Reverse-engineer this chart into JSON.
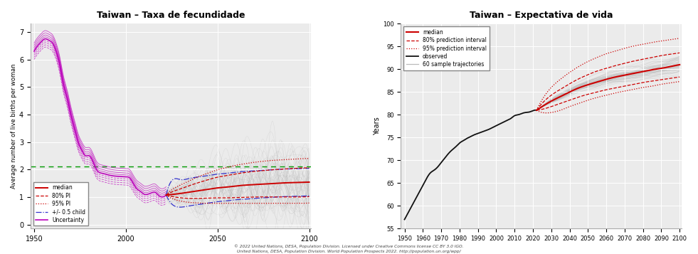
{
  "left_title": "Taiwan – Taxa de fecundidade",
  "right_title": "Taiwan – Expectativa de vida",
  "left_ylabel": "Average number of live births per woman",
  "right_ylabel": "Years",
  "left_xlim": [
    1948,
    2101
  ],
  "left_ylim": [
    -0.15,
    7.3
  ],
  "right_xlim": [
    1948,
    2101
  ],
  "right_ylim": [
    55,
    100
  ],
  "left_xticks": [
    1950,
    2000,
    2050,
    2100
  ],
  "right_xticks": [
    1950,
    1960,
    1970,
    1980,
    1990,
    2000,
    2010,
    2020,
    2030,
    2040,
    2050,
    2060,
    2070,
    2080,
    2090,
    2100
  ],
  "left_yticks": [
    0,
    1,
    2,
    3,
    4,
    5,
    6,
    7
  ],
  "right_yticks": [
    55,
    60,
    65,
    70,
    75,
    80,
    85,
    90,
    95,
    100
  ],
  "caption_line1": "© 2022 United Nations, DESA, Population Division. Licensed under Creative Commons license CC BY 3.0 IGO.",
  "caption_line2": "United Nations, DESA, Population Division. World Population Prospects 2022. http://population.un.org/wpp/",
  "green_line_y": 2.1,
  "color_median": "#cc0000",
  "color_80pi": "#cc0000",
  "color_95pi": "#cc0000",
  "color_pm05": "#3333cc",
  "color_uncertainty": "#bb00bb",
  "color_observed_le": "#111111",
  "color_trajectories": "#bbbbbb",
  "color_green": "#009900",
  "fert_obs_years": [
    1950,
    1952,
    1954,
    1956,
    1958,
    1960,
    1962,
    1964,
    1966,
    1968,
    1970,
    1972,
    1974,
    1976,
    1978,
    1980,
    1982,
    1984,
    1986,
    1988,
    1990,
    1992,
    1994,
    1996,
    1998,
    2000,
    2002,
    2004,
    2006,
    2008,
    2010,
    2012,
    2014,
    2016,
    2018,
    2020,
    2022
  ],
  "fert_obs_vals": [
    6.3,
    6.5,
    6.65,
    6.75,
    6.7,
    6.6,
    6.3,
    5.8,
    5.1,
    4.6,
    4.0,
    3.5,
    3.0,
    2.7,
    2.5,
    2.5,
    2.3,
    2.0,
    1.88,
    1.85,
    1.81,
    1.78,
    1.76,
    1.75,
    1.74,
    1.73,
    1.7,
    1.5,
    1.3,
    1.2,
    1.1,
    1.1,
    1.15,
    1.17,
    1.05,
    1.0,
    1.07
  ],
  "fert_unc_offsets": [
    0.07,
    0.14,
    0.22,
    0.3
  ],
  "fert_proj_years": [
    2022,
    2025,
    2030,
    2035,
    2040,
    2045,
    2050,
    2055,
    2060,
    2065,
    2070,
    2075,
    2080,
    2085,
    2090,
    2095,
    2100
  ],
  "fert_median": [
    1.07,
    1.09,
    1.13,
    1.18,
    1.23,
    1.28,
    1.33,
    1.36,
    1.4,
    1.43,
    1.45,
    1.47,
    1.49,
    1.51,
    1.52,
    1.53,
    1.54
  ],
  "fert_80lo": [
    1.07,
    1.02,
    0.97,
    0.95,
    0.95,
    0.96,
    0.97,
    0.97,
    0.98,
    0.99,
    1.0,
    1.0,
    1.0,
    1.0,
    1.0,
    1.0,
    1.01
  ],
  "fert_80hi": [
    1.07,
    1.18,
    1.3,
    1.42,
    1.53,
    1.63,
    1.72,
    1.78,
    1.84,
    1.89,
    1.93,
    1.96,
    1.99,
    2.01,
    2.03,
    2.05,
    2.06
  ],
  "fert_95lo": [
    1.07,
    0.95,
    0.85,
    0.8,
    0.78,
    0.77,
    0.77,
    0.77,
    0.77,
    0.77,
    0.77,
    0.77,
    0.77,
    0.77,
    0.77,
    0.77,
    0.78
  ],
  "fert_95hi": [
    1.07,
    1.26,
    1.44,
    1.6,
    1.75,
    1.87,
    1.99,
    2.07,
    2.15,
    2.21,
    2.26,
    2.3,
    2.33,
    2.35,
    2.37,
    2.39,
    2.4
  ],
  "fert_pm05lo": [
    1.07,
    0.75,
    0.63,
    0.68,
    0.73,
    0.78,
    0.83,
    0.86,
    0.9,
    0.92,
    0.95,
    0.97,
    0.99,
    1.01,
    1.02,
    1.03,
    1.04
  ],
  "fert_pm05hi": [
    1.07,
    1.59,
    1.63,
    1.68,
    1.73,
    1.78,
    1.83,
    1.86,
    1.9,
    1.93,
    1.95,
    1.97,
    1.99,
    2.01,
    2.02,
    2.03,
    2.04
  ],
  "le_obs_years": [
    1950,
    1952,
    1954,
    1956,
    1958,
    1960,
    1962,
    1964,
    1966,
    1968,
    1970,
    1972,
    1974,
    1976,
    1978,
    1980,
    1982,
    1984,
    1986,
    1988,
    1990,
    1992,
    1994,
    1996,
    1998,
    2000,
    2002,
    2004,
    2006,
    2008,
    2010,
    2012,
    2014,
    2016,
    2018,
    2020,
    2022
  ],
  "le_obs_vals": [
    57.0,
    58.5,
    60.0,
    61.5,
    63.0,
    64.5,
    66.0,
    67.2,
    67.8,
    68.5,
    69.5,
    70.5,
    71.5,
    72.3,
    73.0,
    73.8,
    74.3,
    74.8,
    75.2,
    75.6,
    75.9,
    76.2,
    76.5,
    76.8,
    77.2,
    77.6,
    78.0,
    78.4,
    78.8,
    79.2,
    79.8,
    80.0,
    80.3,
    80.5,
    80.6,
    80.9,
    81.0
  ],
  "le_proj_years": [
    2022,
    2025,
    2030,
    2035,
    2040,
    2045,
    2050,
    2055,
    2060,
    2065,
    2070,
    2075,
    2080,
    2085,
    2090,
    2095,
    2100
  ],
  "le_median": [
    81.0,
    81.8,
    83.0,
    84.0,
    85.0,
    85.9,
    86.6,
    87.2,
    87.8,
    88.3,
    88.7,
    89.1,
    89.5,
    89.9,
    90.2,
    90.6,
    91.0
  ],
  "le_80lo": [
    81.0,
    81.2,
    81.8,
    82.5,
    83.2,
    83.9,
    84.5,
    85.0,
    85.5,
    85.9,
    86.3,
    86.7,
    87.1,
    87.4,
    87.7,
    88.0,
    88.3
  ],
  "le_80hi": [
    81.0,
    82.5,
    84.3,
    85.6,
    86.8,
    87.9,
    88.8,
    89.6,
    90.2,
    90.8,
    91.3,
    91.8,
    92.2,
    92.6,
    93.0,
    93.3,
    93.6
  ],
  "le_95lo": [
    81.0,
    80.5,
    80.5,
    81.0,
    81.8,
    82.5,
    83.2,
    83.8,
    84.3,
    84.8,
    85.2,
    85.6,
    86.0,
    86.3,
    86.7,
    87.0,
    87.3
  ],
  "le_95hi": [
    81.0,
    83.3,
    86.0,
    87.8,
    89.3,
    90.6,
    91.7,
    92.6,
    93.4,
    94.0,
    94.6,
    95.1,
    95.5,
    95.9,
    96.2,
    96.5,
    96.8
  ],
  "bg_color": "#ebebeb"
}
